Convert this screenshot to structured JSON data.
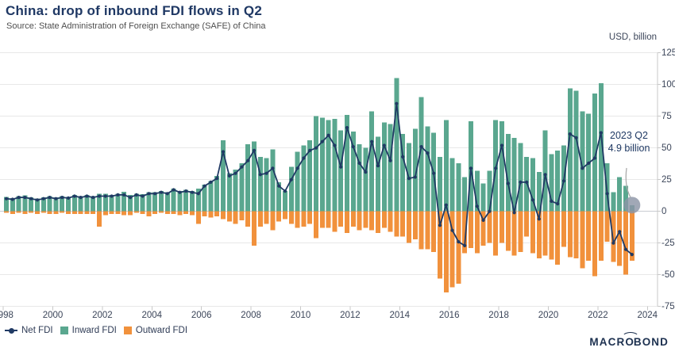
{
  "page": {
    "title": "China: drop of inbound FDI flows in Q2",
    "source": "Source: State Administration of Foreign Exchange (SAFE) of China"
  },
  "colors": {
    "navy": "#203A64",
    "green": "#5AA78F",
    "orange": "#F1913C",
    "gridline": "#E8E8E8",
    "zero_line": "#C9CCD1",
    "axis_line": "#C8C8C8",
    "tick_text": "#3B4559",
    "highlight_circle": "#8C95A6",
    "leader_line": "#ABABAB"
  },
  "axis": {
    "y_title": "USD, billion",
    "y_ticks": [
      125,
      100,
      75,
      50,
      25,
      0,
      -25,
      -50,
      -75
    ],
    "y_range": [
      -75,
      125
    ],
    "x_tick_years": [
      1998,
      2000,
      2002,
      2004,
      2006,
      2008,
      2010,
      2012,
      2014,
      2016,
      2018,
      2020,
      2022,
      2024
    ]
  },
  "legend": {
    "items": [
      {
        "label": "Net FDI",
        "marker": "line-dot",
        "color": "#203A64"
      },
      {
        "label": "Inward FDI",
        "marker": "square",
        "color": "#5AA78F"
      },
      {
        "label": "Outward FDI",
        "marker": "square",
        "color": "#F1913C"
      }
    ]
  },
  "annotation": {
    "line1": "2023 Q2",
    "line2": "4.9 billion",
    "series": "Inward FDI",
    "quarter": "2023 Q2",
    "value": 4.9
  },
  "branding": {
    "logo_pre": "MACR",
    "logo_o": "O",
    "logo_post": "BOND"
  },
  "chart_data": {
    "type": "bar+line combo",
    "title": "China: drop of inbound FDI flows in Q2",
    "frequency": "quarterly",
    "start": "1998 Q1",
    "end": "2023 Q2",
    "points": 102,
    "ylabel": "USD, billion",
    "ylim": [
      -75,
      125
    ],
    "grid": "horizontal",
    "legend_position": "bottom-left",
    "series": [
      {
        "name": "Inward FDI",
        "type": "bar",
        "color": "#5AA78F",
        "values": [
          11.5,
          10.5,
          12,
          12.5,
          11,
          10,
          11,
          12,
          11,
          12,
          11.5,
          13,
          12,
          13,
          12,
          14,
          14,
          13,
          14,
          15.5,
          13,
          14,
          13.5,
          15,
          15,
          16,
          15,
          18,
          16,
          17,
          16,
          18,
          21,
          24,
          28,
          56,
          30,
          33,
          38,
          53,
          55,
          43,
          42,
          49,
          23,
          16,
          35,
          47,
          52,
          56,
          75,
          74,
          72,
          73,
          64,
          76,
          63,
          53,
          50,
          79,
          59,
          70,
          69,
          105,
          61,
          54,
          65,
          90,
          67,
          62,
          43,
          72,
          42,
          38,
          27,
          71,
          32,
          22,
          32,
          72,
          71,
          61,
          58,
          54,
          43,
          42,
          31,
          64,
          45,
          48,
          52,
          97,
          95,
          79,
          77,
          93,
          101,
          38,
          15,
          27,
          20,
          4.9
        ]
      },
      {
        "name": "Outward FDI",
        "type": "bar",
        "color": "#F1913C",
        "values": [
          -1,
          -2,
          -1,
          -2,
          -1,
          -2,
          -1,
          -2,
          -2,
          -1,
          -2,
          -2,
          -2,
          -2,
          -2,
          -12,
          -3,
          -2,
          -2,
          -3,
          -3,
          -1,
          -2,
          -4,
          -2,
          -1,
          -2,
          -2,
          -3,
          -2,
          -3,
          -10,
          -4,
          -5,
          -4,
          -6,
          -8,
          -10,
          -7,
          -12,
          -27,
          -12,
          -10,
          -15,
          -8,
          -6,
          -10,
          -13,
          -12,
          -10,
          -21,
          -13,
          -13,
          -16,
          -12,
          -17,
          -12,
          -15,
          -13,
          -15,
          -17,
          -13,
          -16,
          -20,
          -20,
          -25,
          -22,
          -30,
          -30,
          -32,
          -53,
          -64,
          -60,
          -57,
          -33,
          -29,
          -33,
          -27,
          -25,
          -35,
          -25,
          -31,
          -35,
          -32,
          -20,
          -33,
          -37,
          -35,
          -38,
          -42,
          -28,
          -36,
          -37,
          -45,
          -39,
          -51,
          -39,
          -24,
          -40,
          -43,
          -50,
          -39
        ]
      },
      {
        "name": "Net FDI",
        "type": "line",
        "color": "#203A64",
        "values": [
          10,
          9.5,
          11,
          11,
          10,
          9,
          10,
          11,
          10,
          11,
          10.5,
          12,
          11,
          12,
          11,
          12,
          12,
          12,
          13,
          13,
          11,
          13,
          12,
          14,
          14,
          15,
          14,
          17,
          15,
          16,
          15,
          14,
          20,
          23,
          26,
          47,
          28,
          30,
          35,
          40,
          48,
          29,
          30,
          34,
          20,
          16,
          25,
          34,
          42,
          48,
          50,
          55,
          60,
          52,
          35,
          66,
          51,
          38,
          31,
          55,
          36,
          52,
          40,
          85,
          43,
          26,
          27,
          51,
          46,
          30,
          -11,
          5,
          -15,
          -24,
          -27,
          34,
          4,
          -7,
          0,
          34,
          52,
          22,
          -1,
          23,
          23,
          9,
          -6,
          29,
          8,
          6,
          24,
          61,
          58,
          34,
          38,
          42,
          62,
          14,
          -25,
          -16,
          -30,
          -34
        ]
      }
    ]
  }
}
